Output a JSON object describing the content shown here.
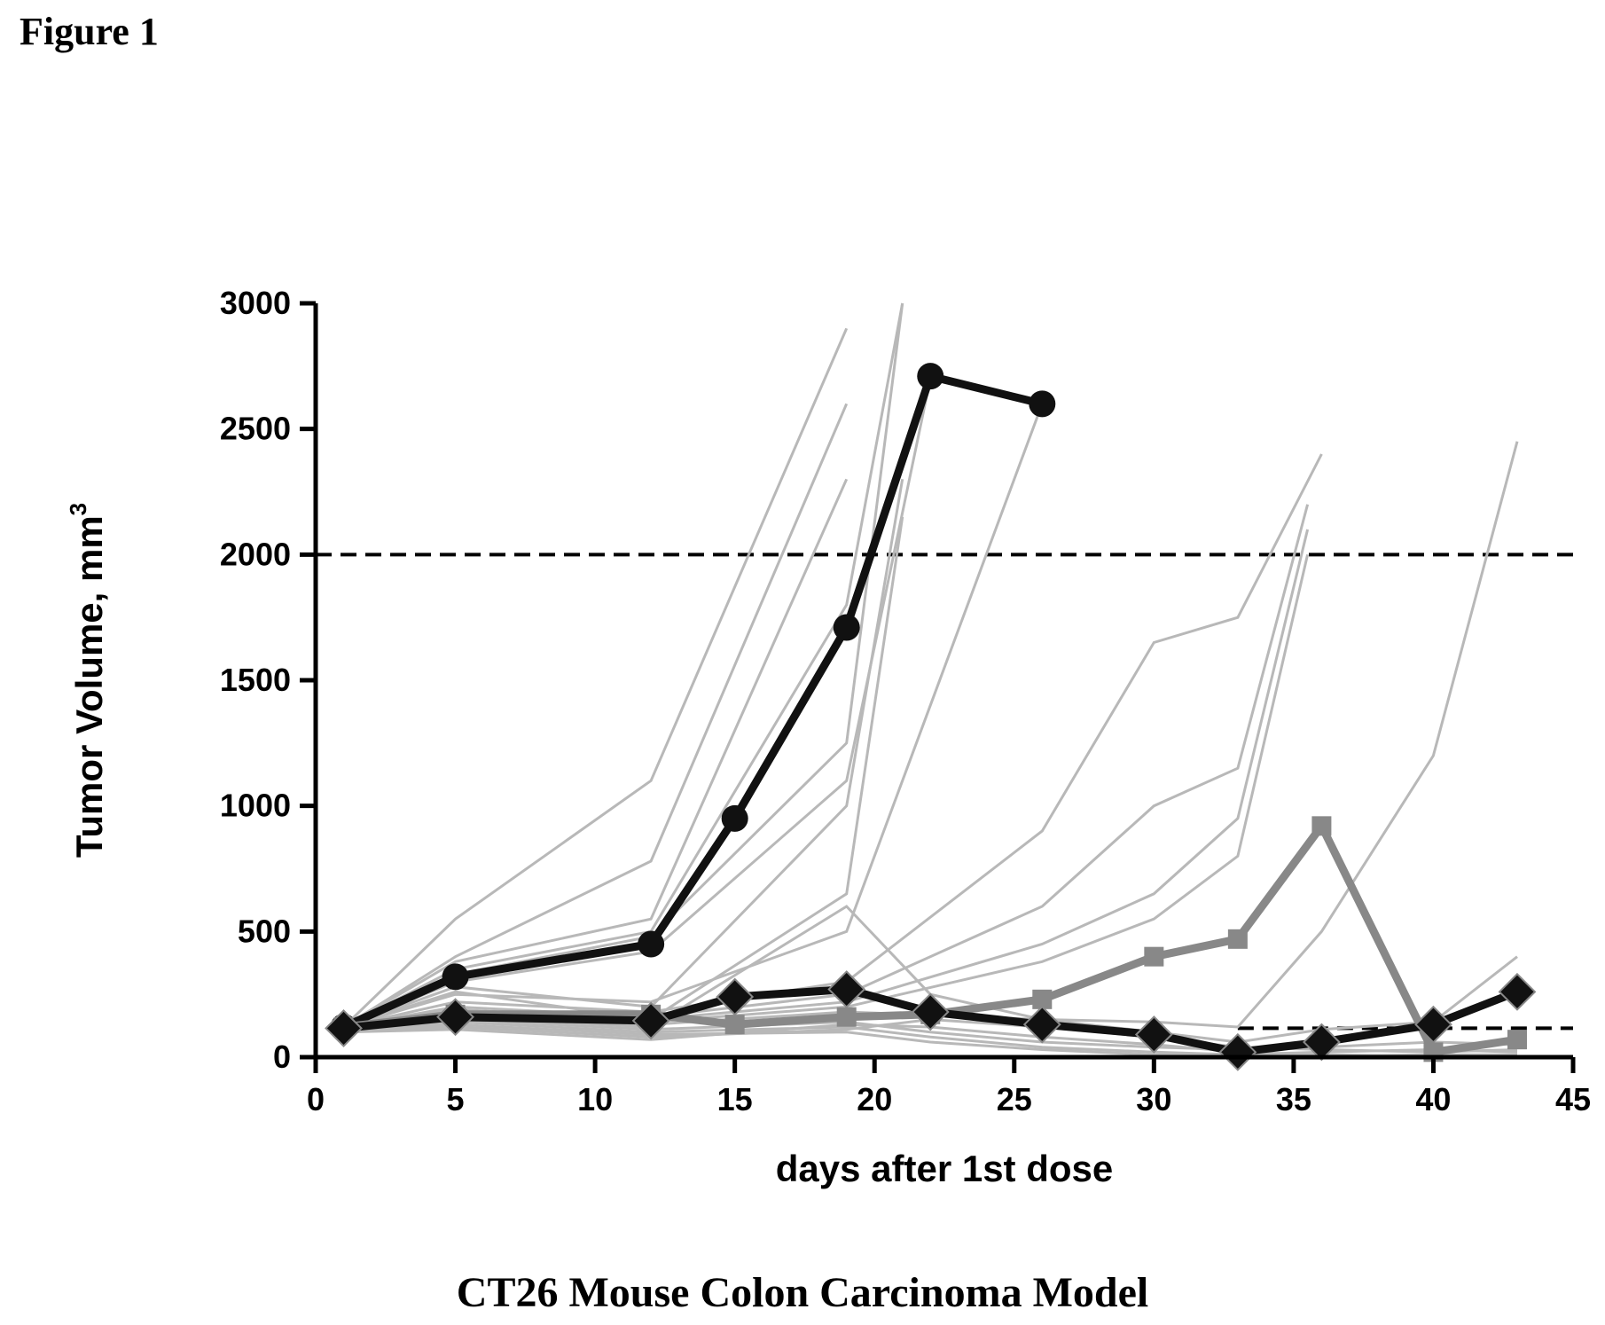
{
  "figure_label": "Figure 1",
  "caption": "CT26 Mouse Colon Carcinoma Model",
  "chart_data": {
    "type": "line",
    "title": "",
    "xlabel": "days after 1st dose",
    "ylabel_main": "Tumor Volume, mm",
    "ylabel_sup": "3",
    "xlim": [
      0,
      45
    ],
    "ylim": [
      0,
      3000
    ],
    "xticks": [
      0,
      5,
      10,
      15,
      20,
      25,
      30,
      35,
      40,
      45
    ],
    "yticks": [
      0,
      500,
      1000,
      1500,
      2000,
      2500,
      3000
    ],
    "grid": false,
    "reference_lines": [
      {
        "y": 2000,
        "style": "dashed",
        "x_start": 0,
        "x_end": 45
      },
      {
        "y": 115,
        "style": "dashed",
        "x_start": 33,
        "x_end": 45
      }
    ],
    "colors": {
      "mean": "#111111",
      "median": "#888888",
      "individual": "#b8b8b8"
    },
    "series": [
      {
        "role": "individual",
        "x": [
          1,
          5,
          12,
          19
        ],
        "y": [
          120,
          550,
          1100,
          2900
        ]
      },
      {
        "role": "individual",
        "x": [
          1,
          5,
          12,
          19
        ],
        "y": [
          120,
          400,
          780,
          2600
        ]
      },
      {
        "role": "individual",
        "x": [
          1,
          5,
          12,
          19
        ],
        "y": [
          120,
          380,
          550,
          2300
        ]
      },
      {
        "role": "individual",
        "x": [
          1,
          5,
          12,
          19,
          21
        ],
        "y": [
          120,
          350,
          500,
          1800,
          3000
        ]
      },
      {
        "role": "individual",
        "x": [
          1,
          5,
          12,
          19,
          21
        ],
        "y": [
          120,
          330,
          480,
          1250,
          3000
        ]
      },
      {
        "role": "individual",
        "x": [
          1,
          5,
          12,
          19,
          22
        ],
        "y": [
          120,
          300,
          420,
          1100,
          2700
        ]
      },
      {
        "role": "individual",
        "x": [
          1,
          5,
          12,
          19,
          21
        ],
        "y": [
          120,
          280,
          200,
          1000,
          2300
        ]
      },
      {
        "role": "individual",
        "x": [
          1,
          5,
          12,
          19,
          21
        ],
        "y": [
          120,
          260,
          150,
          650,
          2150
        ]
      },
      {
        "role": "individual",
        "x": [
          1,
          5,
          12,
          19,
          22,
          26
        ],
        "y": [
          120,
          250,
          220,
          500,
          1400,
          2600
        ]
      },
      {
        "role": "individual",
        "x": [
          1,
          5,
          12,
          19,
          26,
          30,
          33,
          36
        ],
        "y": [
          120,
          220,
          180,
          300,
          900,
          1650,
          1750,
          2400
        ]
      },
      {
        "role": "individual",
        "x": [
          1,
          5,
          12,
          19,
          26,
          30,
          33,
          35.5
        ],
        "y": [
          120,
          200,
          160,
          250,
          600,
          1000,
          1150,
          2200
        ]
      },
      {
        "role": "individual",
        "x": [
          1,
          5,
          12,
          19,
          26,
          30,
          33,
          35.5
        ],
        "y": [
          120,
          190,
          150,
          220,
          450,
          650,
          950,
          2100
        ]
      },
      {
        "role": "individual",
        "x": [
          1,
          5,
          12,
          19,
          26,
          30,
          33,
          35.5
        ],
        "y": [
          120,
          180,
          140,
          200,
          380,
          550,
          800,
          2000
        ]
      },
      {
        "role": "individual",
        "x": [
          1,
          5,
          12,
          19,
          26,
          30,
          33,
          36,
          40,
          43
        ],
        "y": [
          120,
          170,
          130,
          180,
          150,
          140,
          120,
          500,
          1200,
          2450
        ]
      },
      {
        "role": "individual",
        "x": [
          1,
          5,
          12,
          19,
          22,
          26,
          30,
          33,
          36,
          40,
          43
        ],
        "y": [
          110,
          160,
          120,
          600,
          250,
          150,
          100,
          60,
          110,
          140,
          400
        ]
      },
      {
        "role": "individual",
        "x": [
          1,
          5,
          12,
          19,
          22,
          26,
          30,
          33,
          36,
          40,
          43
        ],
        "y": [
          110,
          150,
          110,
          140,
          100,
          60,
          40,
          30,
          40,
          60,
          50
        ]
      },
      {
        "role": "individual",
        "x": [
          1,
          5,
          12,
          19,
          22,
          26,
          30,
          33,
          36,
          40,
          43
        ],
        "y": [
          100,
          140,
          100,
          120,
          80,
          40,
          20,
          10,
          20,
          30,
          20
        ]
      },
      {
        "role": "individual",
        "x": [
          1,
          5,
          12,
          19,
          22,
          26,
          30,
          33,
          36,
          40,
          43
        ],
        "y": [
          100,
          130,
          90,
          100,
          60,
          30,
          10,
          5,
          5,
          10,
          10
        ]
      },
      {
        "role": "individual",
        "x": [
          1,
          5,
          12,
          19,
          22,
          26,
          30,
          33,
          36,
          40,
          43
        ],
        "y": [
          100,
          120,
          80,
          110,
          150,
          120,
          80,
          40,
          30,
          20,
          30
        ]
      },
      {
        "role": "individual",
        "x": [
          1,
          5,
          12,
          19,
          22,
          26,
          30,
          33,
          36,
          40,
          43
        ],
        "y": [
          100,
          110,
          70,
          130,
          120,
          80,
          50,
          20,
          10,
          5,
          0
        ]
      },
      {
        "role": "mean",
        "marker": "circle",
        "x": [
          1,
          5,
          12,
          15,
          19,
          22,
          26
        ],
        "y": [
          120,
          320,
          450,
          950,
          1710,
          2710,
          2600
        ]
      },
      {
        "role": "median",
        "marker": "square",
        "x": [
          1,
          5,
          12,
          15,
          19,
          22,
          26,
          30,
          33,
          36,
          40,
          43
        ],
        "y": [
          120,
          170,
          170,
          130,
          160,
          170,
          230,
          400,
          470,
          920,
          20,
          70
        ]
      },
      {
        "role": "mean",
        "marker": "diamond",
        "x": [
          1,
          5,
          12,
          15,
          19,
          22,
          26,
          30,
          33,
          36,
          40,
          43
        ],
        "y": [
          115,
          160,
          145,
          240,
          270,
          180,
          130,
          90,
          20,
          60,
          130,
          260
        ]
      }
    ]
  }
}
